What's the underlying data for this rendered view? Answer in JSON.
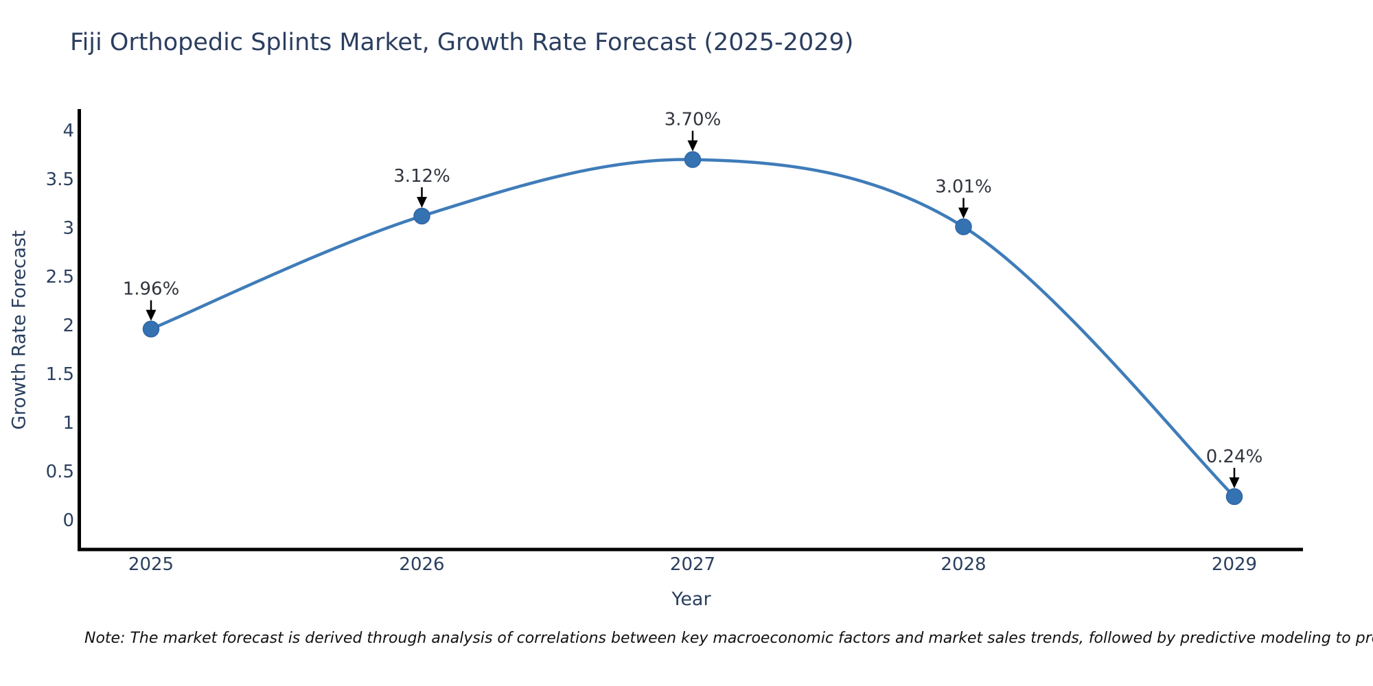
{
  "note": "Note: The market forecast is derived through analysis of correlations between key macroeconomic factors and market sales trends, followed by predictive modeling to project future sales",
  "chart_data": {
    "type": "line",
    "title": "Fiji Orthopedic Splints Market, Growth Rate Forecast (2025-2029)",
    "xlabel": "Year",
    "ylabel": "Growth Rate Forecast",
    "categories": [
      "2025",
      "2026",
      "2027",
      "2028",
      "2029"
    ],
    "series": [
      {
        "name": "Growth Rate Forecast",
        "values": [
          1.96,
          3.12,
          3.7,
          3.01,
          0.24
        ]
      }
    ],
    "point_labels": [
      "1.96%",
      "3.12%",
      "3.70%",
      "3.01%",
      "0.24%"
    ],
    "y_ticks": [
      0,
      0.5,
      1,
      1.5,
      2,
      2.5,
      3,
      3.5,
      4
    ],
    "y_tick_labels": [
      "0",
      "0.5",
      "1",
      "1.5",
      "2",
      "2.5",
      "3",
      "3.5",
      "4"
    ],
    "ylim": [
      -0.32,
      4.22
    ],
    "line_shape": "spline",
    "grid": false,
    "legend_position": "none",
    "marker_style": "circle",
    "annotation_arrows": true,
    "colors": {
      "line": "#3f7cb9",
      "marker": "#3572b2",
      "marker_edge": "#2f66a3",
      "axis": "#000000",
      "tick_text": "#2a3f5f",
      "annotation_text": "#30343c",
      "title_text": "#2b3e5f",
      "note_text": "#111111",
      "background": "#ffffff"
    }
  }
}
